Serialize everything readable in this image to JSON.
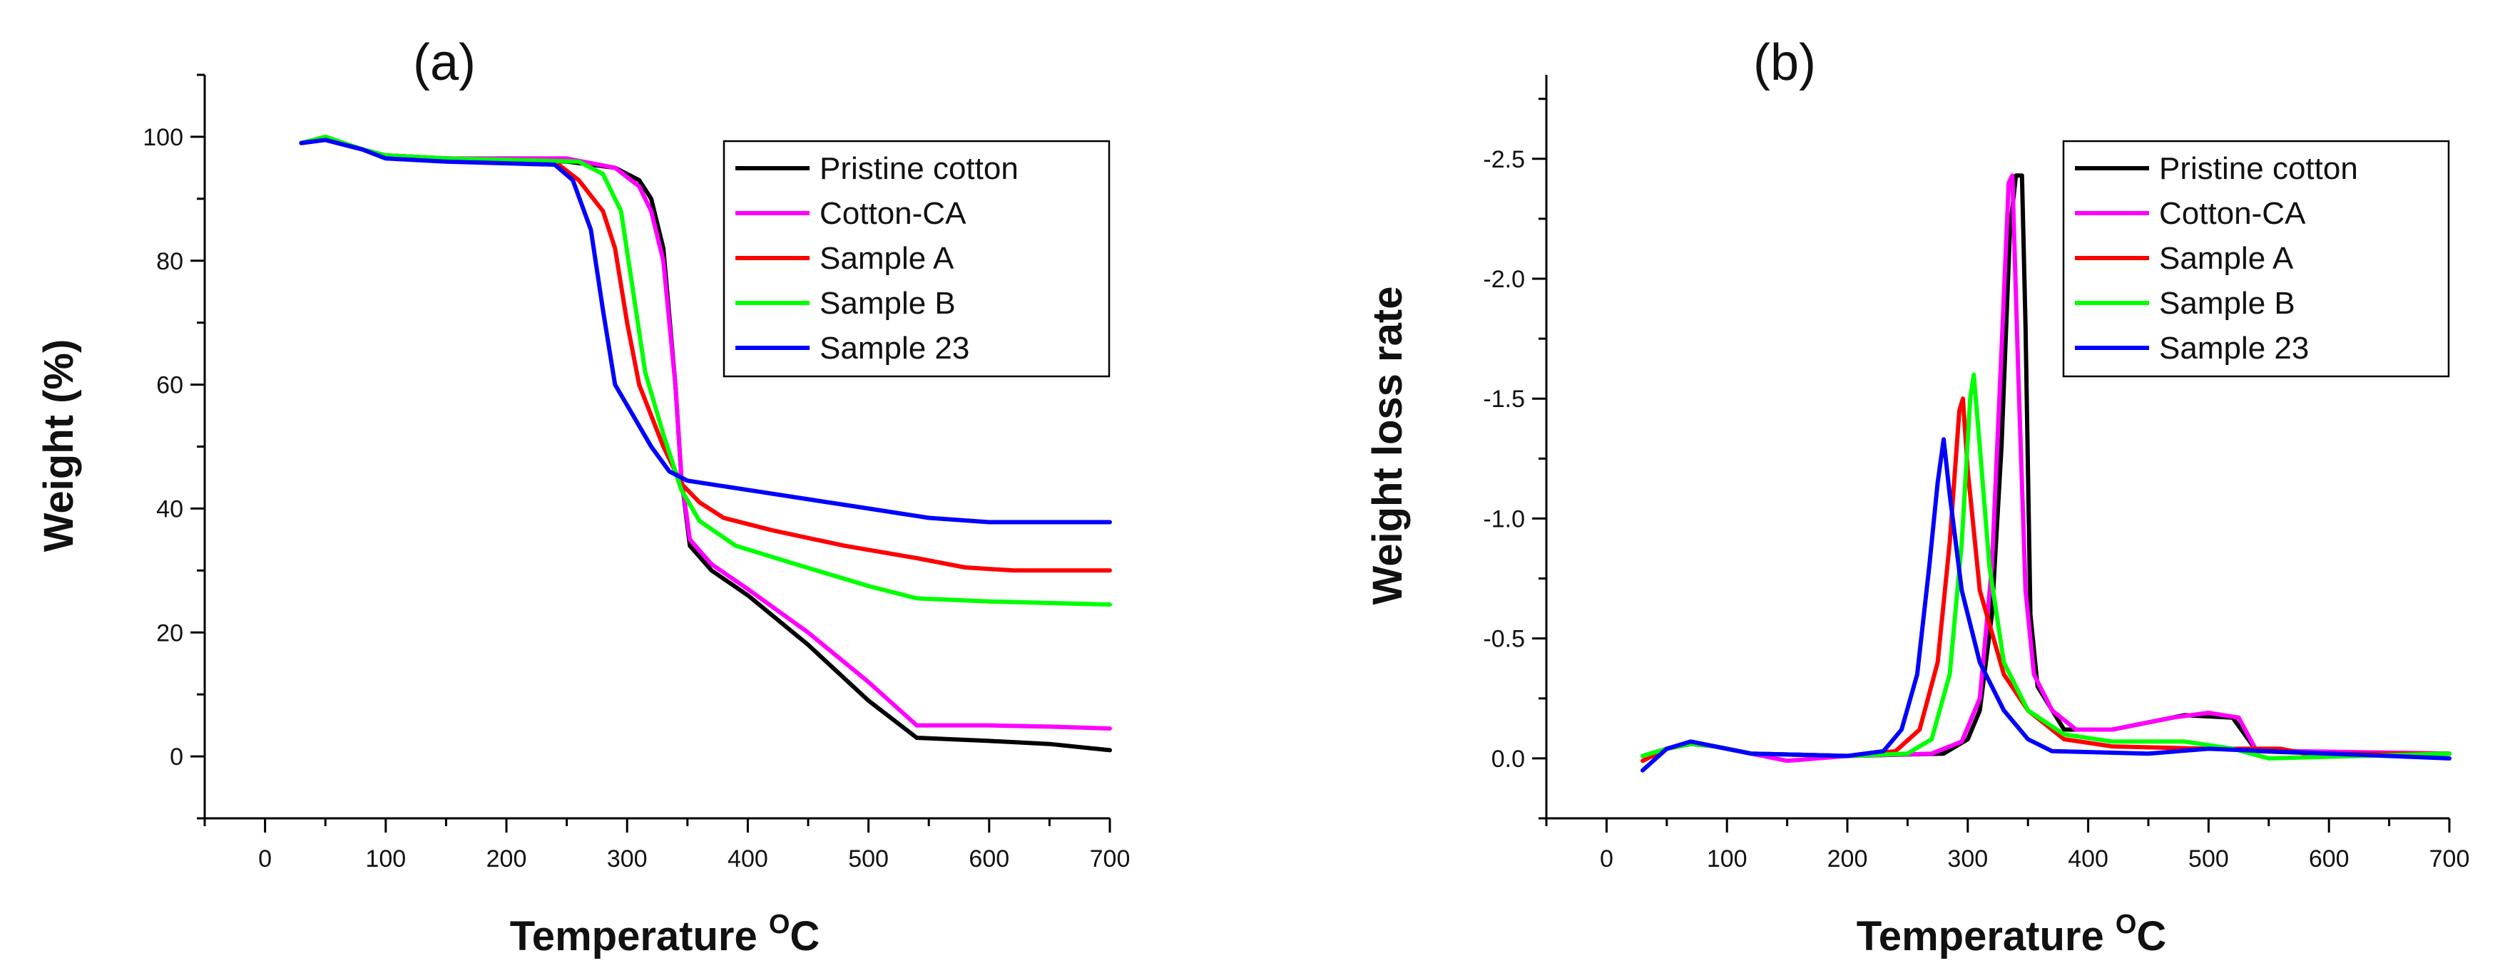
{
  "chart_data": [
    {
      "type": "line",
      "panel_label": "(a)",
      "xlabel": "Temperature",
      "xlabel_sup": "O",
      "xlabel_suffix": "C",
      "ylabel": "Weight  (%)",
      "xlim": [
        -50,
        700
      ],
      "ylim": [
        -10,
        110
      ],
      "xticks": [
        0,
        100,
        200,
        300,
        400,
        500,
        600,
        700
      ],
      "yticks": [
        0,
        20,
        40,
        60,
        80,
        100
      ],
      "ytick_labels": [
        "0",
        "20",
        "40",
        "60",
        "80",
        "100"
      ],
      "legend_position": "top-right",
      "series": [
        {
          "name": "Pristine cotton",
          "color": "#000000",
          "points": [
            [
              30,
              99
            ],
            [
              50,
              99.5
            ],
            [
              80,
              98
            ],
            [
              100,
              97
            ],
            [
              150,
              96.5
            ],
            [
              250,
              96
            ],
            [
              290,
              95
            ],
            [
              310,
              93
            ],
            [
              320,
              90
            ],
            [
              330,
              82
            ],
            [
              340,
              60
            ],
            [
              345,
              45
            ],
            [
              352,
              34
            ],
            [
              370,
              30
            ],
            [
              400,
              26
            ],
            [
              450,
              18
            ],
            [
              500,
              9
            ],
            [
              540,
              3
            ],
            [
              600,
              2.5
            ],
            [
              650,
              2
            ],
            [
              700,
              1
            ]
          ]
        },
        {
          "name": "Cotton-CA",
          "color": "#ff00ff",
          "points": [
            [
              30,
              99
            ],
            [
              50,
              99.5
            ],
            [
              80,
              98
            ],
            [
              100,
              97
            ],
            [
              150,
              96.5
            ],
            [
              250,
              96.5
            ],
            [
              290,
              95
            ],
            [
              310,
              92
            ],
            [
              320,
              88
            ],
            [
              330,
              80
            ],
            [
              340,
              60
            ],
            [
              345,
              45
            ],
            [
              352,
              35
            ],
            [
              370,
              31
            ],
            [
              400,
              27
            ],
            [
              450,
              20
            ],
            [
              500,
              12
            ],
            [
              540,
              5
            ],
            [
              600,
              5
            ],
            [
              650,
              4.8
            ],
            [
              700,
              4.5
            ]
          ]
        },
        {
          "name": "Sample A",
          "color": "#ff0000",
          "points": [
            [
              30,
              99
            ],
            [
              50,
              100
            ],
            [
              80,
              98
            ],
            [
              100,
              97
            ],
            [
              150,
              96.5
            ],
            [
              240,
              96
            ],
            [
              260,
              93
            ],
            [
              280,
              88
            ],
            [
              290,
              82
            ],
            [
              300,
              70
            ],
            [
              310,
              60
            ],
            [
              330,
              50
            ],
            [
              345,
              44
            ],
            [
              360,
              41
            ],
            [
              380,
              38.5
            ],
            [
              420,
              36.5
            ],
            [
              480,
              34
            ],
            [
              540,
              32
            ],
            [
              580,
              30.5
            ],
            [
              620,
              30
            ],
            [
              700,
              30
            ]
          ]
        },
        {
          "name": "Sample B",
          "color": "#00ff00",
          "points": [
            [
              30,
              99
            ],
            [
              50,
              100
            ],
            [
              80,
              98
            ],
            [
              100,
              97
            ],
            [
              150,
              96.5
            ],
            [
              260,
              96
            ],
            [
              280,
              94
            ],
            [
              295,
              88
            ],
            [
              305,
              75
            ],
            [
              315,
              62
            ],
            [
              330,
              52
            ],
            [
              345,
              43
            ],
            [
              360,
              38
            ],
            [
              390,
              34
            ],
            [
              440,
              31
            ],
            [
              500,
              27.5
            ],
            [
              540,
              25.5
            ],
            [
              600,
              25
            ],
            [
              700,
              24.5
            ]
          ]
        },
        {
          "name": "Sample 23",
          "color": "#0000ff",
          "points": [
            [
              30,
              99
            ],
            [
              50,
              99.5
            ],
            [
              80,
              98
            ],
            [
              100,
              96.5
            ],
            [
              150,
              96
            ],
            [
              240,
              95.5
            ],
            [
              255,
              93
            ],
            [
              270,
              85
            ],
            [
              280,
              72
            ],
            [
              290,
              60
            ],
            [
              305,
              55
            ],
            [
              320,
              50
            ],
            [
              335,
              46
            ],
            [
              350,
              44.5
            ],
            [
              400,
              43
            ],
            [
              450,
              41.5
            ],
            [
              500,
              40
            ],
            [
              550,
              38.5
            ],
            [
              600,
              37.8
            ],
            [
              650,
              37.8
            ],
            [
              700,
              37.8
            ]
          ]
        }
      ]
    },
    {
      "type": "line",
      "panel_label": "(b)",
      "xlabel": "Temperature",
      "xlabel_sup": "O",
      "xlabel_suffix": "C",
      "ylabel": "Weight loss rate",
      "xlim": [
        -50,
        700
      ],
      "ylim": [
        0.25,
        -2.85
      ],
      "xticks": [
        0,
        100,
        200,
        300,
        400,
        500,
        600,
        700
      ],
      "yticks": [
        0,
        -0.5,
        -1.0,
        -1.5,
        -2.0,
        -2.5
      ],
      "ytick_labels": [
        "0.0",
        "-0.5",
        "-1.0",
        "-1.5",
        "-2.0",
        "-2.5"
      ],
      "legend_position": "top-right",
      "series": [
        {
          "name": "Pristine cotton",
          "color": "#000000",
          "points": [
            [
              30,
              -0.01
            ],
            [
              50,
              -0.04
            ],
            [
              70,
              -0.06
            ],
            [
              90,
              -0.05
            ],
            [
              120,
              -0.02
            ],
            [
              200,
              -0.01
            ],
            [
              280,
              -0.02
            ],
            [
              300,
              -0.08
            ],
            [
              310,
              -0.2
            ],
            [
              320,
              -0.6
            ],
            [
              328,
              -1.3
            ],
            [
              335,
              -2.2
            ],
            [
              340,
              -2.43
            ],
            [
              345,
              -2.43
            ],
            [
              348,
              -1.8
            ],
            [
              352,
              -0.6
            ],
            [
              358,
              -0.3
            ],
            [
              380,
              -0.12
            ],
            [
              420,
              -0.12
            ],
            [
              480,
              -0.18
            ],
            [
              520,
              -0.17
            ],
            [
              540,
              -0.03
            ],
            [
              600,
              -0.02
            ],
            [
              700,
              -0.02
            ]
          ]
        },
        {
          "name": "Cotton-CA",
          "color": "#ff00ff",
          "points": [
            [
              30,
              -0.01
            ],
            [
              50,
              -0.04
            ],
            [
              70,
              -0.06
            ],
            [
              90,
              -0.05
            ],
            [
              120,
              -0.02
            ],
            [
              150,
              0.01
            ],
            [
              200,
              -0.01
            ],
            [
              270,
              -0.02
            ],
            [
              295,
              -0.07
            ],
            [
              310,
              -0.25
            ],
            [
              320,
              -0.8
            ],
            [
              328,
              -1.7
            ],
            [
              334,
              -2.4
            ],
            [
              337,
              -2.43
            ],
            [
              342,
              -1.6
            ],
            [
              348,
              -0.7
            ],
            [
              355,
              -0.35
            ],
            [
              370,
              -0.2
            ],
            [
              390,
              -0.12
            ],
            [
              420,
              -0.12
            ],
            [
              470,
              -0.17
            ],
            [
              500,
              -0.19
            ],
            [
              525,
              -0.17
            ],
            [
              540,
              -0.03
            ],
            [
              570,
              -0.03
            ],
            [
              700,
              -0.02
            ]
          ]
        },
        {
          "name": "Sample A",
          "color": "#ff0000",
          "points": [
            [
              30,
              0.01
            ],
            [
              50,
              -0.04
            ],
            [
              70,
              -0.06
            ],
            [
              90,
              -0.05
            ],
            [
              120,
              -0.02
            ],
            [
              200,
              -0.01
            ],
            [
              240,
              -0.03
            ],
            [
              260,
              -0.12
            ],
            [
              275,
              -0.4
            ],
            [
              285,
              -0.9
            ],
            [
              293,
              -1.45
            ],
            [
              296,
              -1.5
            ],
            [
              300,
              -1.2
            ],
            [
              310,
              -0.7
            ],
            [
              330,
              -0.35
            ],
            [
              350,
              -0.2
            ],
            [
              380,
              -0.08
            ],
            [
              420,
              -0.05
            ],
            [
              500,
              -0.04
            ],
            [
              560,
              -0.04
            ],
            [
              580,
              -0.02
            ],
            [
              700,
              -0.02
            ]
          ]
        },
        {
          "name": "Sample B",
          "color": "#00ff00",
          "points": [
            [
              30,
              -0.01
            ],
            [
              50,
              -0.04
            ],
            [
              70,
              -0.06
            ],
            [
              90,
              -0.05
            ],
            [
              120,
              -0.02
            ],
            [
              200,
              -0.01
            ],
            [
              250,
              -0.02
            ],
            [
              270,
              -0.08
            ],
            [
              285,
              -0.35
            ],
            [
              295,
              -0.9
            ],
            [
              302,
              -1.5
            ],
            [
              305,
              -1.6
            ],
            [
              310,
              -1.3
            ],
            [
              318,
              -0.8
            ],
            [
              330,
              -0.4
            ],
            [
              350,
              -0.2
            ],
            [
              380,
              -0.1
            ],
            [
              420,
              -0.07
            ],
            [
              480,
              -0.07
            ],
            [
              520,
              -0.04
            ],
            [
              550,
              0.0
            ],
            [
              700,
              -0.02
            ]
          ]
        },
        {
          "name": "Sample 23",
          "color": "#0000ff",
          "points": [
            [
              30,
              0.05
            ],
            [
              50,
              -0.04
            ],
            [
              70,
              -0.07
            ],
            [
              90,
              -0.05
            ],
            [
              120,
              -0.02
            ],
            [
              200,
              -0.01
            ],
            [
              230,
              -0.03
            ],
            [
              245,
              -0.12
            ],
            [
              258,
              -0.35
            ],
            [
              268,
              -0.8
            ],
            [
              275,
              -1.15
            ],
            [
              280,
              -1.33
            ],
            [
              285,
              -1.1
            ],
            [
              295,
              -0.7
            ],
            [
              310,
              -0.4
            ],
            [
              330,
              -0.2
            ],
            [
              350,
              -0.08
            ],
            [
              370,
              -0.03
            ],
            [
              450,
              -0.02
            ],
            [
              500,
              -0.04
            ],
            [
              550,
              -0.03
            ],
            [
              600,
              -0.02
            ],
            [
              700,
              0.0
            ]
          ]
        }
      ]
    }
  ]
}
